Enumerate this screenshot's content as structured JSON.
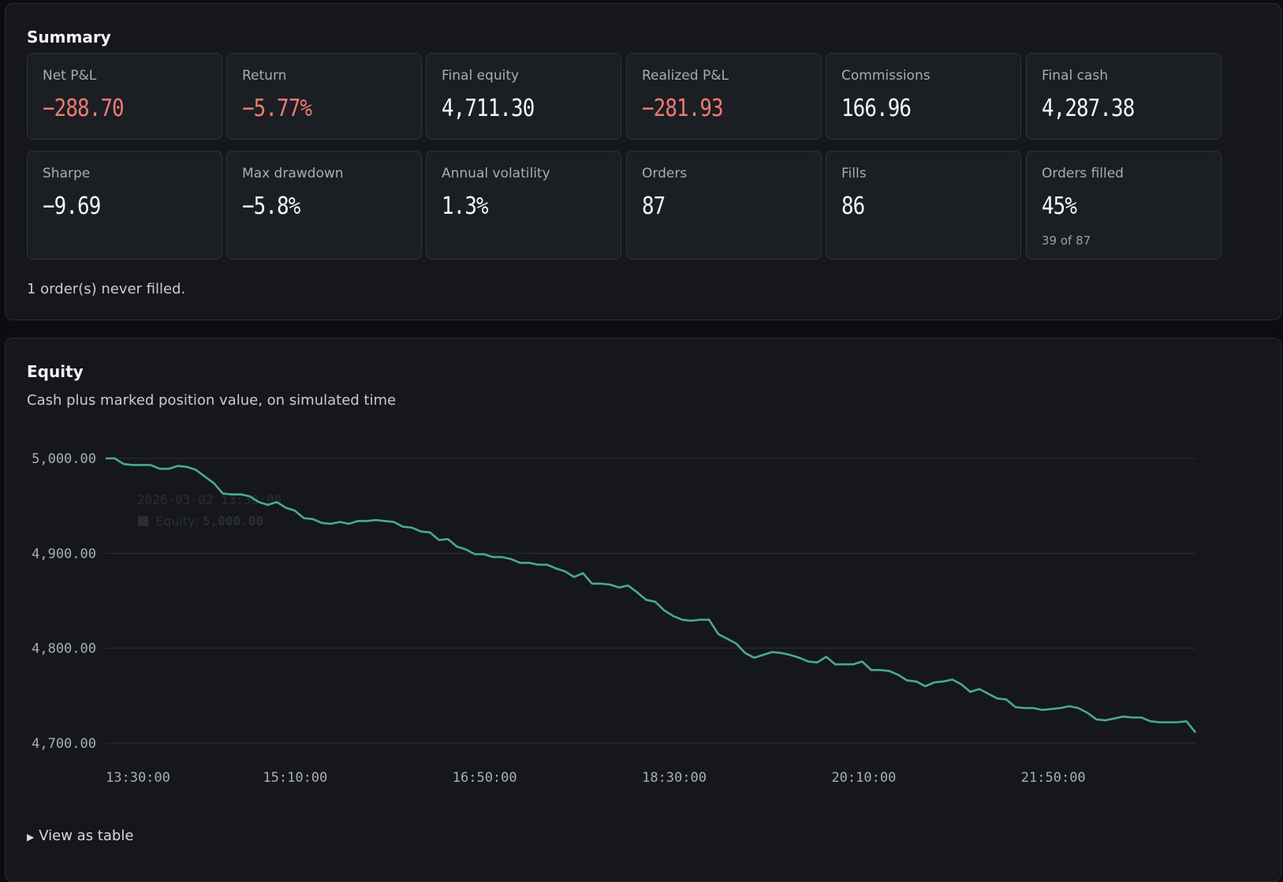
{
  "summary": {
    "title": "Summary",
    "cards": [
      {
        "label": "Net P&L",
        "value": "−288.70",
        "negative": true
      },
      {
        "label": "Return",
        "value": "−5.77%",
        "negative": true
      },
      {
        "label": "Final equity",
        "value": "4,711.30"
      },
      {
        "label": "Realized P&L",
        "value": "−281.93",
        "negative": true
      },
      {
        "label": "Commissions",
        "value": "166.96"
      },
      {
        "label": "Final cash",
        "value": "4,287.38"
      },
      {
        "label": "Sharpe",
        "value": "−9.69"
      },
      {
        "label": "Max drawdown",
        "value": "−5.8%"
      },
      {
        "label": "Annual volatility",
        "value": "1.3%"
      },
      {
        "label": "Orders",
        "value": "87"
      },
      {
        "label": "Fills",
        "value": "86"
      },
      {
        "label": "Orders filled",
        "value": "45%",
        "sub": "39 of 87"
      }
    ],
    "note": "1 order(s) never filled."
  },
  "equity": {
    "title": "Equity",
    "subtitle": "Cash plus marked position value, on simulated time",
    "view_table": "View as table",
    "tooltip": {
      "time": "2026-03-02 13:30:00",
      "series": "Equity:",
      "value": "5,000.00"
    }
  },
  "colors": {
    "line": "#4aa89a",
    "negative": "#f07a72",
    "panel": "#15171b"
  },
  "chart_data": {
    "type": "line",
    "series": [
      {
        "name": "Equity",
        "values": [
          5000.0,
          5000.0,
          4994,
          4993,
          4993,
          4993,
          4989,
          4989,
          4992,
          4991,
          4988,
          4981,
          4974,
          4963,
          4962,
          4962,
          4960,
          4954,
          4951,
          4954,
          4948,
          4945,
          4937,
          4936,
          4932,
          4931,
          4933,
          4931,
          4934,
          4934,
          4935,
          4934,
          4933,
          4928,
          4927,
          4923,
          4922,
          4914,
          4915,
          4907,
          4904,
          4899,
          4899,
          4896,
          4896,
          4894,
          4890,
          4890,
          4888,
          4888,
          4884,
          4881,
          4875,
          4879,
          4868,
          4868,
          4867,
          4864,
          4866,
          4859,
          4851,
          4849,
          4840,
          4834,
          4830,
          4829,
          4830,
          4830,
          4815,
          4810,
          4805,
          4795,
          4790,
          4793,
          4796,
          4795,
          4793,
          4790,
          4786,
          4785,
          4791,
          4783,
          4783,
          4783,
          4786,
          4777,
          4777,
          4776,
          4772,
          4766,
          4765,
          4760,
          4764,
          4765,
          4767,
          4762,
          4754,
          4757,
          4752,
          4747,
          4746,
          4738,
          4737,
          4737,
          4735,
          4736,
          4737,
          4739,
          4737,
          4732,
          4725,
          4724,
          4726,
          4728,
          4727,
          4727,
          4723,
          4722,
          4722,
          4722,
          4723,
          4711.3
        ]
      }
    ],
    "x_start": "13:30:00",
    "x_ticks": [
      "13:30:00",
      "15:10:00",
      "16:50:00",
      "18:30:00",
      "20:10:00",
      "21:50:00"
    ],
    "y_ticks": [
      "5,000.00",
      "4,900.00",
      "4,800.00",
      "4,700.00"
    ],
    "y_tick_values": [
      5000,
      4900,
      4800,
      4700
    ],
    "ylim": [
      4700,
      5000
    ],
    "grid": true,
    "title": "Equity",
    "xlabel": "",
    "ylabel": ""
  }
}
